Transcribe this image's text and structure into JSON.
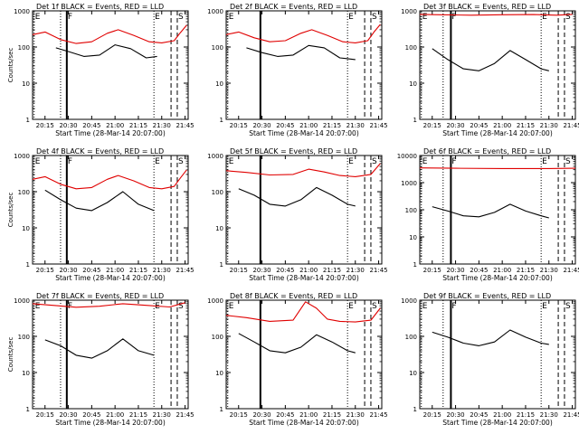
{
  "chart_data": [
    {
      "id": "1f",
      "type": "line",
      "title": "Det 1f BLACK = Events, RED = LLD",
      "xlabel": "Start Time (28-Mar-14 20:07:00)",
      "ylabel": "Counts/sec",
      "ylog": true,
      "ylim": [
        1,
        1000
      ],
      "xlim": [
        "20:07",
        "21:47"
      ],
      "xticks": [
        "20:15",
        "20:30",
        "20:45",
        "21:00",
        "21:15",
        "21:30",
        "21:45"
      ],
      "yticks": [
        "1",
        "10",
        "100",
        "1000"
      ],
      "markers": [
        {
          "label": "E",
          "time": "20:08",
          "style": "dotted"
        },
        {
          "label": "",
          "time": "20:25",
          "style": "dotted"
        },
        {
          "label": "F",
          "time": "20:29",
          "style": "solid"
        },
        {
          "label": "E",
          "time": "21:25",
          "style": "dotted"
        },
        {
          "label": "",
          "time": "21:36",
          "style": "dashed"
        },
        {
          "label": "S",
          "time": "21:40",
          "style": "dashed"
        }
      ],
      "series": [
        {
          "name": "Events",
          "color": "#000000",
          "x": [
            "20:22",
            "20:30",
            "20:40",
            "20:50",
            "21:00",
            "21:10",
            "21:20",
            "21:27"
          ],
          "values": [
            95,
            75,
            55,
            60,
            115,
            90,
            50,
            55
          ]
        },
        {
          "name": "LLD",
          "color": "#e00000",
          "x": [
            "20:07",
            "20:15",
            "20:25",
            "20:35",
            "20:45",
            "20:55",
            "21:02",
            "21:12",
            "21:22",
            "21:30",
            "21:38",
            "21:42",
            "21:46"
          ],
          "values": [
            220,
            260,
            160,
            125,
            140,
            240,
            300,
            210,
            140,
            130,
            150,
            250,
            400
          ]
        }
      ]
    },
    {
      "id": "2f",
      "type": "line",
      "title": "Det 2f BLACK = Events, RED = LLD",
      "xlabel": "Start Time (28-Mar-14 20:07:00)",
      "ylabel": "",
      "ylog": true,
      "ylim": [
        1,
        1000
      ],
      "xlim": [
        "20:07",
        "21:47"
      ],
      "xticks": [
        "20:15",
        "20:30",
        "20:45",
        "21:00",
        "21:15",
        "21:30",
        "21:45"
      ],
      "yticks": [
        "1",
        "10",
        "100",
        "1000"
      ],
      "markers": [
        {
          "label": "E",
          "time": "20:08",
          "style": "dotted"
        },
        {
          "label": "",
          "time": "20:29",
          "style": "solid"
        },
        {
          "label": "E",
          "time": "21:25",
          "style": "dotted"
        },
        {
          "label": "",
          "time": "21:36",
          "style": "dashed"
        },
        {
          "label": "S",
          "time": "21:40",
          "style": "dashed"
        }
      ],
      "series": [
        {
          "name": "Events",
          "color": "#000000",
          "x": [
            "20:20",
            "20:30",
            "20:40",
            "20:50",
            "21:00",
            "21:10",
            "21:20",
            "21:30"
          ],
          "values": [
            95,
            70,
            55,
            60,
            110,
            95,
            50,
            45
          ]
        },
        {
          "name": "LLD",
          "color": "#e00000",
          "x": [
            "20:07",
            "20:15",
            "20:25",
            "20:35",
            "20:45",
            "20:55",
            "21:02",
            "21:12",
            "21:22",
            "21:30",
            "21:38",
            "21:42",
            "21:46"
          ],
          "values": [
            220,
            260,
            180,
            140,
            150,
            240,
            300,
            210,
            140,
            130,
            150,
            260,
            420
          ]
        }
      ]
    },
    {
      "id": "3f",
      "type": "line",
      "title": "Det 3f BLACK = Events, RED = LLD",
      "xlabel": "Start Time (28-Mar-14 20:07:00)",
      "ylabel": "",
      "ylog": true,
      "ylim": [
        1,
        1000
      ],
      "xlim": [
        "20:07",
        "21:47"
      ],
      "xticks": [
        "20:15",
        "20:30",
        "20:45",
        "21:00",
        "21:15",
        "21:30",
        "21:45"
      ],
      "yticks": [
        "1",
        "10",
        "100",
        "1000"
      ],
      "markers": [
        {
          "label": "E",
          "time": "20:08",
          "style": "dotted"
        },
        {
          "label": "",
          "time": "20:22",
          "style": "dotted"
        },
        {
          "label": "F",
          "time": "20:27",
          "style": "solid"
        },
        {
          "label": "E",
          "time": "21:25",
          "style": "dotted"
        },
        {
          "label": "",
          "time": "21:36",
          "style": "dashed"
        },
        {
          "label": "S",
          "time": "21:40",
          "style": "dashed"
        }
      ],
      "series": [
        {
          "name": "Events",
          "color": "#000000",
          "x": [
            "20:15",
            "20:25",
            "20:35",
            "20:45",
            "20:55",
            "21:05",
            "21:15",
            "21:25",
            "21:30"
          ],
          "values": [
            90,
            45,
            25,
            22,
            35,
            80,
            45,
            25,
            22
          ]
        },
        {
          "name": "LLD",
          "color": "#e00000",
          "x": [
            "20:07",
            "20:20",
            "20:40",
            "21:00",
            "21:20",
            "21:35",
            "21:45"
          ],
          "values": [
            800,
            780,
            760,
            780,
            790,
            760,
            800
          ]
        }
      ]
    },
    {
      "id": "4f",
      "type": "line",
      "title": "Det 4f BLACK = Events, RED = LLD",
      "xlabel": "Start Time (28-Mar-14 20:07:00)",
      "ylabel": "Counts/sec",
      "ylog": true,
      "ylim": [
        1,
        1000
      ],
      "xlim": [
        "20:07",
        "21:47"
      ],
      "xticks": [
        "20:15",
        "20:30",
        "20:45",
        "21:00",
        "21:15",
        "21:30",
        "21:45"
      ],
      "yticks": [
        "1",
        "10",
        "100",
        "1000"
      ],
      "markers": [
        {
          "label": "E",
          "time": "20:08",
          "style": "dotted"
        },
        {
          "label": "",
          "time": "20:25",
          "style": "dotted"
        },
        {
          "label": "F",
          "time": "20:29",
          "style": "solid"
        },
        {
          "label": "E",
          "time": "21:25",
          "style": "dotted"
        },
        {
          "label": "",
          "time": "21:36",
          "style": "dashed"
        },
        {
          "label": "S",
          "time": "21:40",
          "style": "dashed"
        }
      ],
      "series": [
        {
          "name": "Events",
          "color": "#000000",
          "x": [
            "20:15",
            "20:25",
            "20:35",
            "20:45",
            "20:55",
            "21:05",
            "21:15",
            "21:25"
          ],
          "values": [
            110,
            60,
            35,
            30,
            50,
            100,
            45,
            30
          ]
        },
        {
          "name": "LLD",
          "color": "#e00000",
          "x": [
            "20:07",
            "20:15",
            "20:25",
            "20:35",
            "20:45",
            "20:55",
            "21:02",
            "21:12",
            "21:22",
            "21:30",
            "21:38",
            "21:42",
            "21:46"
          ],
          "values": [
            220,
            260,
            160,
            120,
            130,
            220,
            280,
            200,
            130,
            120,
            140,
            240,
            400
          ]
        }
      ]
    },
    {
      "id": "5f",
      "type": "line",
      "title": "Det 5f BLACK = Events, RED = LLD",
      "xlabel": "Start Time (28-Mar-14 20:07:00)",
      "ylabel": "",
      "ylog": true,
      "ylim": [
        1,
        1000
      ],
      "xlim": [
        "20:07",
        "21:47"
      ],
      "xticks": [
        "20:15",
        "20:30",
        "20:45",
        "21:00",
        "21:15",
        "21:30",
        "21:45"
      ],
      "yticks": [
        "1",
        "10",
        "100",
        "1000"
      ],
      "markers": [
        {
          "label": "E",
          "time": "20:08",
          "style": "dotted"
        },
        {
          "label": "",
          "time": "20:29",
          "style": "solid"
        },
        {
          "label": "E",
          "time": "21:25",
          "style": "dotted"
        },
        {
          "label": "",
          "time": "21:36",
          "style": "dashed"
        },
        {
          "label": "S",
          "time": "21:40",
          "style": "dashed"
        }
      ],
      "series": [
        {
          "name": "Events",
          "color": "#000000",
          "x": [
            "20:15",
            "20:25",
            "20:35",
            "20:45",
            "20:55",
            "21:05",
            "21:15",
            "21:25",
            "21:30"
          ],
          "values": [
            120,
            80,
            45,
            40,
            60,
            130,
            80,
            45,
            40
          ]
        },
        {
          "name": "LLD",
          "color": "#e00000",
          "x": [
            "20:07",
            "20:20",
            "20:35",
            "20:50",
            "21:00",
            "21:10",
            "21:20",
            "21:30",
            "21:40",
            "21:46"
          ],
          "values": [
            380,
            340,
            290,
            300,
            420,
            350,
            280,
            260,
            300,
            600
          ]
        }
      ]
    },
    {
      "id": "6f",
      "type": "line",
      "title": "Det 6f BLACK = Events, RED = LLD",
      "xlabel": "Start Time (28-Mar-14 20:07:00)",
      "ylabel": "",
      "ylog": true,
      "ylim": [
        1,
        10000
      ],
      "xlim": [
        "20:07",
        "21:47"
      ],
      "xticks": [
        "20:15",
        "20:30",
        "20:45",
        "21:00",
        "21:15",
        "21:30",
        "21:45"
      ],
      "yticks": [
        "1",
        "10",
        "100",
        "1000",
        "10000"
      ],
      "markers": [
        {
          "label": "E",
          "time": "20:08",
          "style": "dotted"
        },
        {
          "label": "",
          "time": "20:22",
          "style": "dotted"
        },
        {
          "label": "F",
          "time": "20:27",
          "style": "solid"
        },
        {
          "label": "E",
          "time": "21:25",
          "style": "dotted"
        },
        {
          "label": "",
          "time": "21:36",
          "style": "dashed"
        },
        {
          "label": "S",
          "time": "21:40",
          "style": "dashed"
        }
      ],
      "series": [
        {
          "name": "Events",
          "color": "#000000",
          "x": [
            "20:15",
            "20:25",
            "20:35",
            "20:45",
            "20:55",
            "21:05",
            "21:15",
            "21:25",
            "21:30"
          ],
          "values": [
            130,
            90,
            60,
            55,
            80,
            160,
            90,
            60,
            50
          ]
        },
        {
          "name": "LLD",
          "color": "#e00000",
          "x": [
            "20:07",
            "20:30",
            "21:00",
            "21:30",
            "21:47"
          ],
          "values": [
            3500,
            3400,
            3300,
            3300,
            3400
          ]
        }
      ]
    },
    {
      "id": "7f",
      "type": "line",
      "title": "Det 7f BLACK = Events, RED = LLD",
      "xlabel": "Start Time (28-Mar-14 20:07:00)",
      "ylabel": "Counts/sec",
      "ylog": true,
      "ylim": [
        1,
        1000
      ],
      "xlim": [
        "20:07",
        "21:47"
      ],
      "xticks": [
        "20:15",
        "20:30",
        "20:45",
        "21:00",
        "21:15",
        "21:30",
        "21:45"
      ],
      "yticks": [
        "1",
        "10",
        "100",
        "1000"
      ],
      "markers": [
        {
          "label": "E",
          "time": "20:08",
          "style": "dotted"
        },
        {
          "label": "",
          "time": "20:25",
          "style": "dotted"
        },
        {
          "label": "F",
          "time": "20:29",
          "style": "solid"
        },
        {
          "label": "E",
          "time": "21:25",
          "style": "dotted"
        },
        {
          "label": "",
          "time": "21:36",
          "style": "dashed"
        },
        {
          "label": "S",
          "time": "21:40",
          "style": "dashed"
        }
      ],
      "series": [
        {
          "name": "Events",
          "color": "#000000",
          "x": [
            "20:15",
            "20:25",
            "20:35",
            "20:45",
            "20:55",
            "21:05",
            "21:15",
            "21:25"
          ],
          "values": [
            80,
            55,
            30,
            25,
            40,
            85,
            40,
            30
          ]
        },
        {
          "name": "LLD",
          "color": "#e00000",
          "x": [
            "20:07",
            "20:20",
            "20:35",
            "20:50",
            "21:05",
            "21:20",
            "21:35",
            "21:45"
          ],
          "values": [
            800,
            720,
            640,
            680,
            800,
            720,
            650,
            850
          ]
        }
      ]
    },
    {
      "id": "8f",
      "type": "line",
      "title": "Det 8f BLACK = Events, RED = LLD",
      "xlabel": "Start Time (28-Mar-14 20:07:00)",
      "ylabel": "",
      "ylog": true,
      "ylim": [
        1,
        1000
      ],
      "xlim": [
        "20:07",
        "21:47"
      ],
      "xticks": [
        "20:15",
        "20:30",
        "20:45",
        "21:00",
        "21:15",
        "21:30",
        "21:45"
      ],
      "yticks": [
        "1",
        "10",
        "100",
        "1000"
      ],
      "markers": [
        {
          "label": "E",
          "time": "20:08",
          "style": "dotted"
        },
        {
          "label": "",
          "time": "20:29",
          "style": "solid"
        },
        {
          "label": "E",
          "time": "21:25",
          "style": "dotted"
        },
        {
          "label": "",
          "time": "21:36",
          "style": "dashed"
        },
        {
          "label": "S",
          "time": "21:40",
          "style": "dashed"
        }
      ],
      "series": [
        {
          "name": "Events",
          "color": "#000000",
          "x": [
            "20:15",
            "20:25",
            "20:35",
            "20:45",
            "20:55",
            "21:05",
            "21:15",
            "21:25",
            "21:30"
          ],
          "values": [
            120,
            70,
            40,
            35,
            50,
            110,
            70,
            40,
            35
          ]
        },
        {
          "name": "LLD",
          "color": "#e00000",
          "x": [
            "20:07",
            "20:20",
            "20:35",
            "20:50",
            "20:58",
            "21:05",
            "21:12",
            "21:20",
            "21:30",
            "21:40",
            "21:46"
          ],
          "values": [
            380,
            330,
            260,
            280,
            900,
            600,
            300,
            260,
            250,
            280,
            600
          ]
        }
      ]
    },
    {
      "id": "9f",
      "type": "line",
      "title": "Det 9f BLACK = Events, RED = LLD",
      "xlabel": "Start Time (28-Mar-14 20:07:00)",
      "ylabel": "",
      "ylog": true,
      "ylim": [
        1,
        1000
      ],
      "xlim": [
        "20:07",
        "21:47"
      ],
      "xticks": [
        "20:15",
        "20:30",
        "20:45",
        "21:00",
        "21:15",
        "21:30",
        "21:45"
      ],
      "yticks": [
        "1",
        "10",
        "100",
        "1000"
      ],
      "markers": [
        {
          "label": "E",
          "time": "20:08",
          "style": "dotted"
        },
        {
          "label": "",
          "time": "20:22",
          "style": "dotted"
        },
        {
          "label": "F",
          "time": "20:27",
          "style": "solid"
        },
        {
          "label": "E",
          "time": "21:25",
          "style": "dotted"
        },
        {
          "label": "",
          "time": "21:36",
          "style": "dashed"
        },
        {
          "label": "S",
          "time": "21:40",
          "style": "dashed"
        }
      ],
      "series": [
        {
          "name": "Events",
          "color": "#000000",
          "x": [
            "20:15",
            "20:25",
            "20:35",
            "20:45",
            "20:55",
            "21:05",
            "21:15",
            "21:25",
            "21:30"
          ],
          "values": [
            130,
            95,
            65,
            55,
            70,
            150,
            95,
            65,
            60
          ]
        }
      ]
    }
  ]
}
